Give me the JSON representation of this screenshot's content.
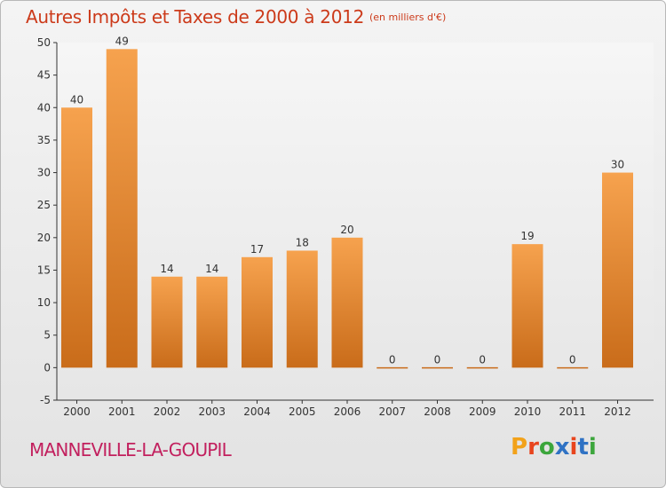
{
  "header": {
    "title": "Autres Impôts et Taxes de 2000 à 2012",
    "unit": "(en milliers d'€)"
  },
  "footer": {
    "commune": "MANNEVILLE-LA-GOUPIL",
    "logo_letters": [
      "P",
      "r",
      "o",
      "x",
      "i",
      "t",
      "i"
    ],
    "logo_colors": [
      "#f2a21a",
      "#e8451e",
      "#3ca63c",
      "#2f72c4",
      "#e8451e",
      "#2f72c4",
      "#3ca63c"
    ]
  },
  "chart_data": {
    "type": "bar",
    "title": "Autres Impôts et Taxes de 2000 à 2012",
    "subtitle": "(en milliers d'€)",
    "categories": [
      "2000",
      "2001",
      "2002",
      "2003",
      "2004",
      "2005",
      "2006",
      "2007",
      "2008",
      "2009",
      "2010",
      "2011",
      "2012"
    ],
    "values": [
      40,
      49,
      14,
      14,
      17,
      18,
      20,
      0,
      0,
      0,
      19,
      0,
      30
    ],
    "data_labels": [
      "40",
      "49",
      "14",
      "14",
      "17",
      "18",
      "20",
      "0",
      "0",
      "0",
      "19",
      "0",
      "30"
    ],
    "yticks": [
      "-5",
      "0",
      "5",
      "10",
      "15",
      "20",
      "25",
      "30",
      "35",
      "40",
      "45",
      "50"
    ],
    "ylim": [
      -5,
      50
    ],
    "grid": false,
    "bar_color_light": "#f6a24e",
    "bar_color_dark": "#c96c1a"
  }
}
